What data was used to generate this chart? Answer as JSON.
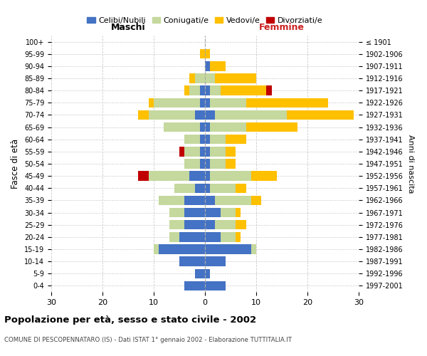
{
  "age_groups": [
    "0-4",
    "5-9",
    "10-14",
    "15-19",
    "20-24",
    "25-29",
    "30-34",
    "35-39",
    "40-44",
    "45-49",
    "50-54",
    "55-59",
    "60-64",
    "65-69",
    "70-74",
    "75-79",
    "80-84",
    "85-89",
    "90-94",
    "95-99",
    "100+"
  ],
  "birth_years": [
    "1997-2001",
    "1992-1996",
    "1987-1991",
    "1982-1986",
    "1977-1981",
    "1972-1976",
    "1967-1971",
    "1962-1966",
    "1957-1961",
    "1952-1956",
    "1947-1951",
    "1942-1946",
    "1937-1941",
    "1932-1936",
    "1927-1931",
    "1922-1926",
    "1917-1921",
    "1912-1916",
    "1907-1911",
    "1902-1906",
    "≤ 1901"
  ],
  "maschi": {
    "celibi": [
      4,
      2,
      5,
      9,
      5,
      4,
      4,
      4,
      2,
      3,
      1,
      1,
      1,
      1,
      2,
      1,
      1,
      0,
      0,
      0,
      0
    ],
    "coniugati": [
      0,
      0,
      0,
      1,
      2,
      3,
      3,
      5,
      4,
      8,
      3,
      3,
      3,
      7,
      9,
      9,
      2,
      2,
      0,
      0,
      0
    ],
    "vedovi": [
      0,
      0,
      0,
      0,
      0,
      0,
      0,
      0,
      0,
      0,
      0,
      0,
      0,
      0,
      2,
      1,
      1,
      1,
      0,
      1,
      0
    ],
    "divorziati": [
      0,
      0,
      0,
      0,
      0,
      0,
      0,
      0,
      0,
      2,
      0,
      1,
      0,
      0,
      0,
      0,
      0,
      0,
      0,
      0,
      0
    ]
  },
  "femmine": {
    "nubili": [
      4,
      1,
      4,
      9,
      3,
      2,
      3,
      2,
      1,
      1,
      1,
      1,
      1,
      1,
      2,
      1,
      1,
      0,
      1,
      0,
      0
    ],
    "coniugate": [
      0,
      0,
      0,
      1,
      3,
      4,
      3,
      7,
      5,
      8,
      3,
      3,
      3,
      7,
      14,
      7,
      2,
      2,
      0,
      0,
      0
    ],
    "vedove": [
      0,
      0,
      0,
      0,
      1,
      2,
      1,
      2,
      2,
      5,
      2,
      2,
      4,
      10,
      13,
      16,
      9,
      8,
      3,
      1,
      0
    ],
    "divorziate": [
      0,
      0,
      0,
      0,
      0,
      0,
      0,
      0,
      0,
      0,
      0,
      0,
      0,
      0,
      0,
      0,
      1,
      0,
      0,
      0,
      0
    ]
  },
  "colors": {
    "celibi_nubili": "#4472c4",
    "coniugati": "#c5d89d",
    "vedovi": "#ffc000",
    "divorziati": "#c00000"
  },
  "xlim": 30,
  "title": "Popolazione per età, sesso e stato civile - 2002",
  "subtitle": "COMUNE DI PESCOPENNATARO (IS) - Dati ISTAT 1° gennaio 2002 - Elaborazione TUTTITALIA.IT",
  "ylabel_left": "Fasce di età",
  "ylabel_right": "Anni di nascita",
  "xlabel_left": "Maschi",
  "xlabel_right": "Femmine"
}
